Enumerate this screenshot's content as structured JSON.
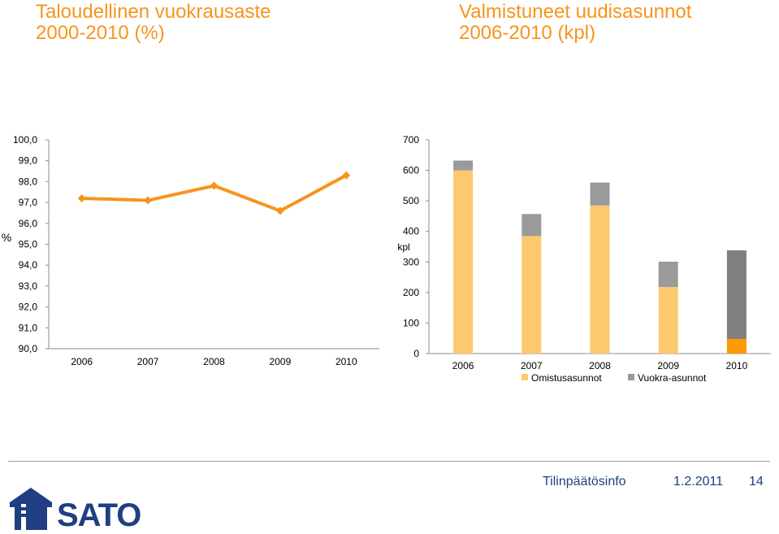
{
  "titles": {
    "left": [
      "Taloudellinen vuokrausaste",
      "2000-2010 (%)"
    ],
    "right": [
      "Valmistuneet uudisasunnot",
      "2006-2010 (kpl)"
    ]
  },
  "footer": {
    "label": "Tilinpäätösinfo",
    "date": "1.2.2011",
    "page": "14",
    "logo_text": "SATO"
  },
  "colors": {
    "line": "#f7941d",
    "owner": "#fdc96f",
    "rental": "#9a9a9a",
    "owner_2010": "#ff9900",
    "rental_2010": "#7f7f7f",
    "brand": "#1f3f82"
  },
  "chart_data": [
    {
      "type": "line",
      "ylabel": "%",
      "ylim": [
        90,
        100
      ],
      "yticks": [
        "90,0",
        "91,0",
        "92,0",
        "93,0",
        "94,0",
        "95,0",
        "96,0",
        "97,0",
        "98,0",
        "99,0",
        "100,0"
      ],
      "categories": [
        "2006",
        "2007",
        "2008",
        "2009",
        "2010"
      ],
      "series": [
        {
          "values": [
            97.2,
            97.1,
            97.8,
            96.6,
            98.3
          ]
        }
      ],
      "grid": false,
      "legend": "none"
    },
    {
      "type": "bar",
      "stacked": true,
      "ylabel": "kpl",
      "ylim": [
        0,
        700
      ],
      "yticks": [
        "0",
        "100",
        "200",
        "300",
        "400",
        "500",
        "600",
        "700"
      ],
      "categories": [
        "2006",
        "2007",
        "2008",
        "2009",
        "2010"
      ],
      "series": [
        {
          "name": "Omistusasunnot",
          "values": [
            600,
            385,
            485,
            218,
            48
          ]
        },
        {
          "name": "Vuokra-asunnot",
          "values": [
            32,
            72,
            75,
            83,
            290
          ]
        }
      ],
      "grid": false,
      "legend": "bottom"
    }
  ]
}
